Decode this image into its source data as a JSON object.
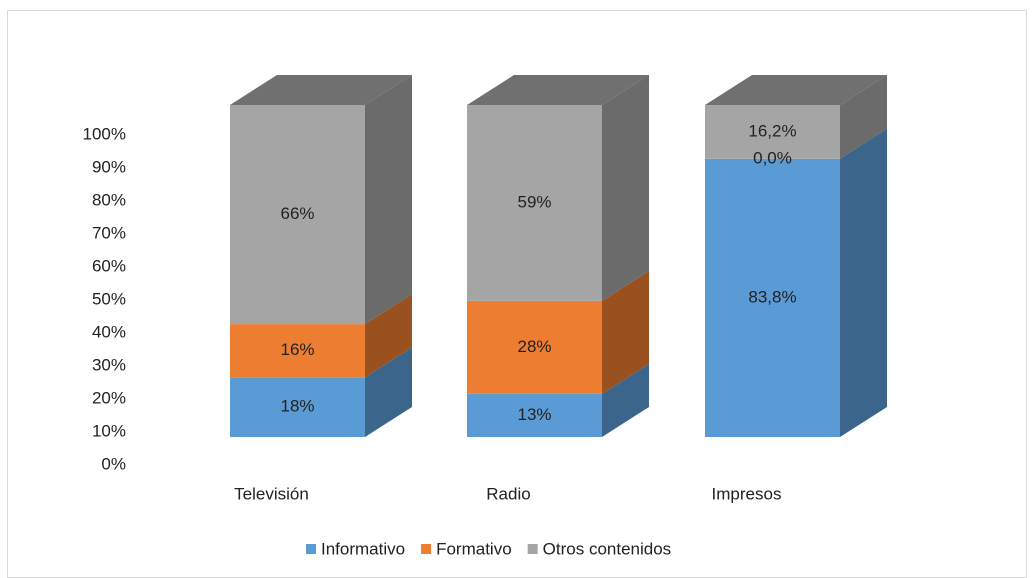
{
  "chart_data": {
    "type": "bar3d_stacked",
    "categories": [
      "Televisión",
      "Radio",
      "Impresos"
    ],
    "series": [
      {
        "name": "Informativo",
        "color": "#5b9bd5",
        "values": [
          18,
          13,
          83.8
        ],
        "value_labels": [
          "18%",
          "13%",
          "83,8%"
        ]
      },
      {
        "name": "Formativo",
        "color": "#ed7d31",
        "values": [
          16,
          28,
          0
        ],
        "value_labels": [
          "16%",
          "28%",
          "0,0%"
        ]
      },
      {
        "name": "Otros contenidos",
        "color": "#a5a5a5",
        "values": [
          66,
          59,
          16.2
        ],
        "value_labels": [
          "66%",
          "59%",
          "16,2%"
        ]
      }
    ],
    "ylim": [
      0,
      100
    ],
    "yticks": [
      {
        "value": 0,
        "label": "0%"
      },
      {
        "value": 10,
        "label": "10%"
      },
      {
        "value": 20,
        "label": "20%"
      },
      {
        "value": 30,
        "label": "30%"
      },
      {
        "value": 40,
        "label": "40%"
      },
      {
        "value": 50,
        "label": "50%"
      },
      {
        "value": 60,
        "label": "60%"
      },
      {
        "value": 70,
        "label": "70%"
      },
      {
        "value": 80,
        "label": "80%"
      },
      {
        "value": 90,
        "label": "90%"
      },
      {
        "value": 100,
        "label": "100%"
      }
    ],
    "legend": "bottom"
  }
}
